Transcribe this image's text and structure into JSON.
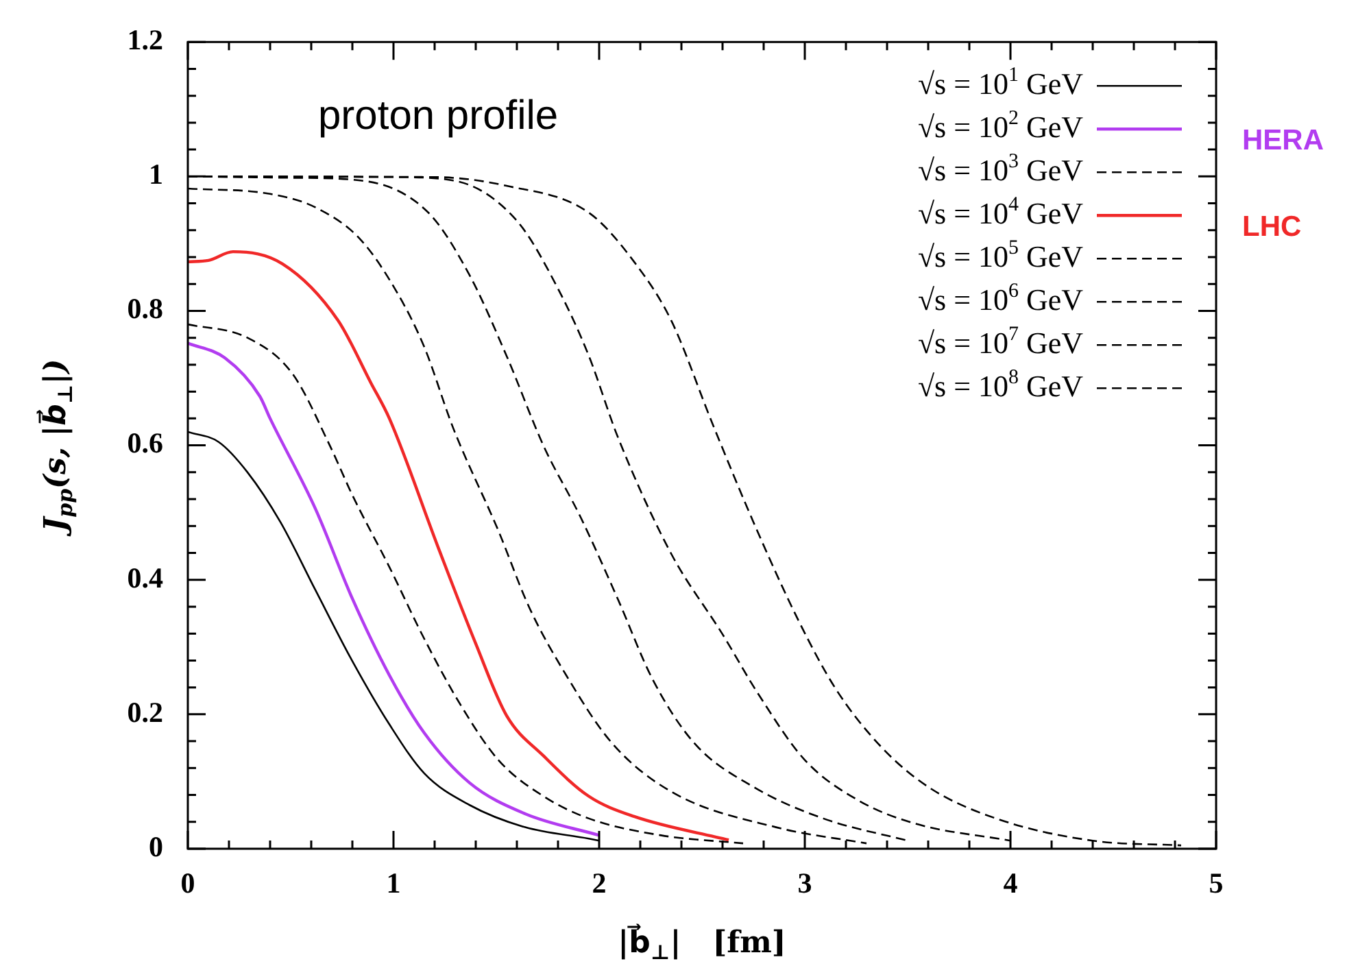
{
  "chart_data": {
    "type": "line",
    "xlabel": "|b⃗$_{⊥}$|   [fm]",
    "ylabel": "J$_{pp}$(s, |b⃗$_{⊥}$|)",
    "annotations": [
      "proton profile",
      "HERA",
      "LHC"
    ],
    "xlim": [
      0,
      5
    ],
    "ylim": [
      0,
      1.2
    ],
    "xticks": [
      0,
      {
        "value": 0.2,
        "label": null
      },
      {
        "value": 0.4,
        "label": null
      },
      {
        "value": 0.6,
        "label": null
      },
      {
        "value": 0.8,
        "label": null
      },
      1,
      {
        "value": 1.2,
        "label": null
      },
      {
        "value": 1.4,
        "label": null
      },
      {
        "value": 1.6,
        "label": null
      },
      {
        "value": 1.8,
        "label": null
      },
      2,
      {
        "value": 2.2,
        "label": null
      },
      {
        "value": 2.4,
        "label": null
      },
      {
        "value": 2.6,
        "label": null
      },
      {
        "value": 2.8,
        "label": null
      },
      3,
      {
        "value": 3.2,
        "label": null
      },
      {
        "value": 3.4,
        "label": null
      },
      {
        "value": 3.6,
        "label": null
      },
      {
        "value": 3.8,
        "label": null
      },
      4,
      {
        "value": 4.2,
        "label": null
      },
      {
        "value": 4.4,
        "label": null
      },
      {
        "value": 4.6,
        "label": null
      },
      {
        "value": 4.8,
        "label": null
      },
      5
    ],
    "yticks": [
      0,
      {
        "value": 0.04,
        "label": null
      },
      {
        "value": 0.08,
        "label": null
      },
      {
        "value": 0.12,
        "label": null
      },
      {
        "value": 0.16,
        "label": null
      },
      0.2,
      {
        "value": 0.24,
        "label": null
      },
      {
        "value": 0.28,
        "label": null
      },
      {
        "value": 0.32,
        "label": null
      },
      {
        "value": 0.36,
        "label": null
      },
      0.4,
      {
        "value": 0.44,
        "label": null
      },
      {
        "value": 0.48,
        "label": null
      },
      {
        "value": 0.52,
        "label": null
      },
      {
        "value": 0.56,
        "label": null
      },
      0.6,
      {
        "value": 0.64,
        "label": null
      },
      {
        "value": 0.68,
        "label": null
      },
      {
        "value": 0.72,
        "label": null
      },
      {
        "value": 0.76,
        "label": null
      },
      0.8,
      {
        "value": 0.84,
        "label": null
      },
      {
        "value": 0.88,
        "label": null
      },
      {
        "value": 0.92,
        "label": null
      },
      {
        "value": 0.96,
        "label": null
      },
      1,
      {
        "value": 1.04,
        "label": null
      },
      {
        "value": 1.08,
        "label": null
      },
      {
        "value": 1.12,
        "label": null
      },
      {
        "value": 1.16,
        "label": null
      },
      1.2
    ],
    "legend": "top right",
    "marker": "none",
    "series": [
      {
        "name": "√s = 10$^{1}$ GeV",
        "color": "#000000",
        "line_style": "solid",
        "x": [
          0,
          0.15,
          0.29,
          0.45,
          0.62,
          0.8,
          0.98,
          1.15,
          1.37,
          1.64,
          1.95,
          2.0
        ],
        "values": [
          0.62,
          0.605,
          0.56,
          0.486,
          0.385,
          0.279,
          0.185,
          0.112,
          0.065,
          0.032,
          0.015,
          0.012
        ]
      },
      {
        "name": "√s = 10$^{2}$ GeV",
        "color": "#b23cf0",
        "line_style": "solid",
        "x": [
          0,
          0.18,
          0.35,
          0.4,
          0.62,
          0.8,
          0.98,
          1.15,
          1.37,
          1.64,
          2.0
        ],
        "values": [
          0.752,
          0.73,
          0.673,
          0.64,
          0.506,
          0.372,
          0.258,
          0.172,
          0.098,
          0.052,
          0.02
        ]
      },
      {
        "name": "√s = 10$^{3}$ GeV",
        "color": "#000000",
        "line_style": "dashed",
        "x": [
          0,
          0.29,
          0.51,
          0.69,
          0.8,
          0.98,
          1.15,
          1.33,
          1.51,
          1.73,
          1.95,
          2.3,
          2.7
        ],
        "values": [
          0.78,
          0.76,
          0.706,
          0.6,
          0.526,
          0.419,
          0.312,
          0.212,
          0.132,
          0.078,
          0.045,
          0.02,
          0.008
        ]
      },
      {
        "name": "√s = 10$^{4}$ GeV",
        "color": "#f02828",
        "line_style": "solid",
        "x": [
          0,
          0.1,
          0.22,
          0.46,
          0.73,
          0.89,
          0.98,
          1.22,
          1.4,
          1.55,
          1.73,
          1.95,
          2.17,
          2.63
        ],
        "values": [
          0.873,
          0.875,
          0.888,
          0.87,
          0.786,
          0.693,
          0.64,
          0.446,
          0.305,
          0.198,
          0.138,
          0.078,
          0.048,
          0.013
        ]
      },
      {
        "name": "√s = 10$^{5}$ GeV",
        "color": "#000000",
        "line_style": "dashed",
        "x": [
          0,
          0.4,
          0.62,
          0.84,
          1.02,
          1.15,
          1.29,
          1.51,
          1.66,
          1.84,
          2.06,
          2.35,
          2.86,
          3.3
        ],
        "values": [
          0.982,
          0.974,
          0.954,
          0.906,
          0.826,
          0.746,
          0.626,
          0.473,
          0.359,
          0.258,
          0.158,
          0.085,
          0.032,
          0.008
        ]
      },
      {
        "name": "√s = 10$^{6}$ GeV",
        "color": "#000000",
        "line_style": "dashed",
        "x": [
          0,
          0.5,
          0.84,
          1.17,
          1.37,
          1.55,
          1.73,
          1.91,
          2.09,
          2.26,
          2.46,
          2.75,
          3.09,
          3.5
        ],
        "values": [
          1.0,
          0.998,
          0.994,
          0.946,
          0.853,
          0.733,
          0.599,
          0.493,
          0.372,
          0.252,
          0.158,
          0.092,
          0.045,
          0.012
        ]
      },
      {
        "name": "√s = 10$^{7}$ GeV",
        "color": "#000000",
        "line_style": "dashed",
        "x": [
          0,
          1.0,
          1.29,
          1.6,
          1.8,
          1.95,
          2.09,
          2.35,
          2.6,
          2.77,
          3.0,
          3.26,
          3.53,
          4.0
        ],
        "values": [
          1.0,
          0.999,
          0.994,
          0.934,
          0.833,
          0.733,
          0.613,
          0.439,
          0.319,
          0.232,
          0.132,
          0.072,
          0.038,
          0.012
        ]
      },
      {
        "name": "√s = 10$^{8}$ GeV",
        "color": "#000000",
        "line_style": "dashed",
        "x": [
          0,
          1.2,
          1.55,
          1.95,
          2.17,
          2.35,
          2.55,
          2.75,
          2.97,
          3.15,
          3.37,
          3.6,
          3.93,
          4.4,
          4.83
        ],
        "values": [
          1.0,
          0.999,
          0.986,
          0.946,
          0.873,
          0.786,
          0.633,
          0.486,
          0.339,
          0.238,
          0.152,
          0.092,
          0.045,
          0.012,
          0.005
        ]
      }
    ]
  }
}
